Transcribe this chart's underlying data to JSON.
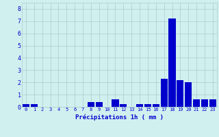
{
  "hours": [
    0,
    1,
    2,
    3,
    4,
    5,
    6,
    7,
    8,
    9,
    10,
    11,
    12,
    13,
    14,
    15,
    16,
    17,
    18,
    19,
    20,
    21,
    22,
    23
  ],
  "values": [
    0.2,
    0.2,
    0,
    0,
    0,
    0,
    0,
    0,
    0.4,
    0.4,
    0,
    0.6,
    0.2,
    0,
    0.2,
    0.2,
    0.2,
    2.3,
    7.2,
    2.2,
    2.0,
    0.6,
    0.6,
    0.6
  ],
  "bar_color": "#0000cc",
  "bg_color": "#d0f0f0",
  "grid_color": "#aacccc",
  "xlabel": "Précipitations 1h ( mm )",
  "xlabel_color": "#0000cc",
  "tick_color": "#0000cc",
  "ylim": [
    0,
    8.5
  ],
  "yticks": [
    0,
    1,
    2,
    3,
    4,
    5,
    6,
    7,
    8
  ],
  "xlim": [
    -0.5,
    23.5
  ],
  "bar_width": 0.85,
  "figwidth": 3.2,
  "figheight": 2.0,
  "dpi": 100
}
